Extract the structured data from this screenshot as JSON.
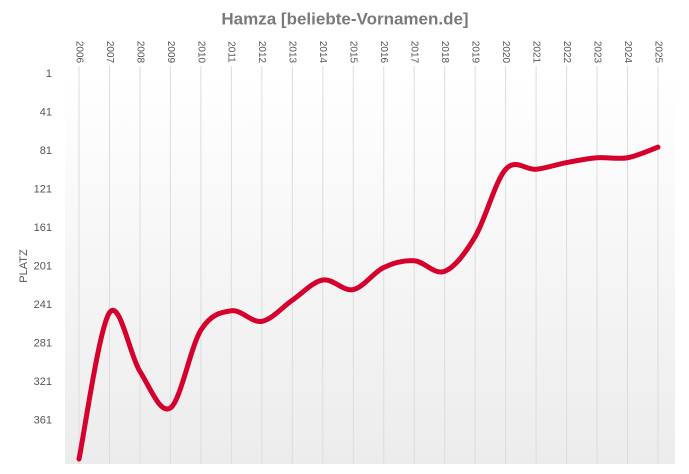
{
  "chart_data": {
    "type": "line",
    "title": "Hamza [beliebte-Vornamen.de]",
    "y_label": "PLATZ",
    "categories": [
      "2006",
      "2007",
      "2008",
      "2009",
      "2010",
      "2011",
      "2012",
      "2013",
      "2014",
      "2015",
      "2016",
      "2017",
      "2018",
      "2019",
      "2020",
      "2021",
      "2022",
      "2023",
      "2024",
      "2025"
    ],
    "values": [
      401,
      249,
      310,
      348,
      267,
      247,
      258,
      236,
      215,
      225,
      202,
      195,
      206,
      170,
      100,
      100,
      93,
      88,
      88,
      77
    ],
    "color": "#d5002c",
    "ylim": [
      401,
      1
    ],
    "yticks": [
      1,
      41,
      81,
      121,
      161,
      201,
      241,
      281,
      321,
      361
    ],
    "inverted": true,
    "grid": true
  }
}
